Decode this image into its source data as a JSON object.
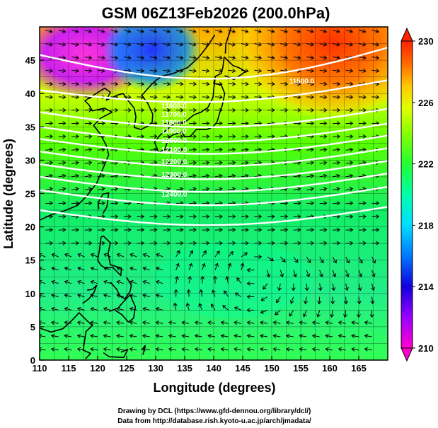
{
  "title": "GSM 06Z13Feb2026 (200.0hPa)",
  "x_axis": {
    "label": "Longitude (degrees)",
    "ticks": [
      "110",
      "115",
      "120",
      "125",
      "130",
      "135",
      "140",
      "145",
      "150",
      "155",
      "160",
      "165"
    ],
    "range": [
      110,
      170
    ]
  },
  "y_axis": {
    "label": "Latitude  (degrees)",
    "ticks": [
      "0",
      "5",
      "10",
      "15",
      "20",
      "25",
      "30",
      "35",
      "40",
      "45"
    ],
    "range": [
      0,
      50
    ]
  },
  "colorbar": {
    "ticks": [
      "210",
      "214",
      "218",
      "222",
      "226",
      "230"
    ],
    "range": [
      210,
      230
    ],
    "colors": [
      "#ff00ff",
      "#8800ff",
      "#0000ff",
      "#00aaff",
      "#00ffdd",
      "#00ff88",
      "#33ff00",
      "#99ff00",
      "#ffff00",
      "#ffaa00",
      "#ff5500",
      "#ff0000"
    ]
  },
  "contour_labels": [
    "11500.0",
    "11600.0",
    "11700.0",
    "11800.0",
    "11900.0",
    "12000.0",
    "12100.0",
    "12200.0",
    "12300.0",
    "12400.0"
  ],
  "contour_values": [
    11500,
    11600,
    11700,
    11800,
    11900,
    12000,
    12100,
    12200,
    12300,
    12400
  ],
  "credit_line1": "Drawing by DCL (https://www.gfd-dennou.org/library/dcl/)",
  "credit_line2": "Data from http://database.rish.kyoto-u.ac.jp/arch/jmadata/"
}
